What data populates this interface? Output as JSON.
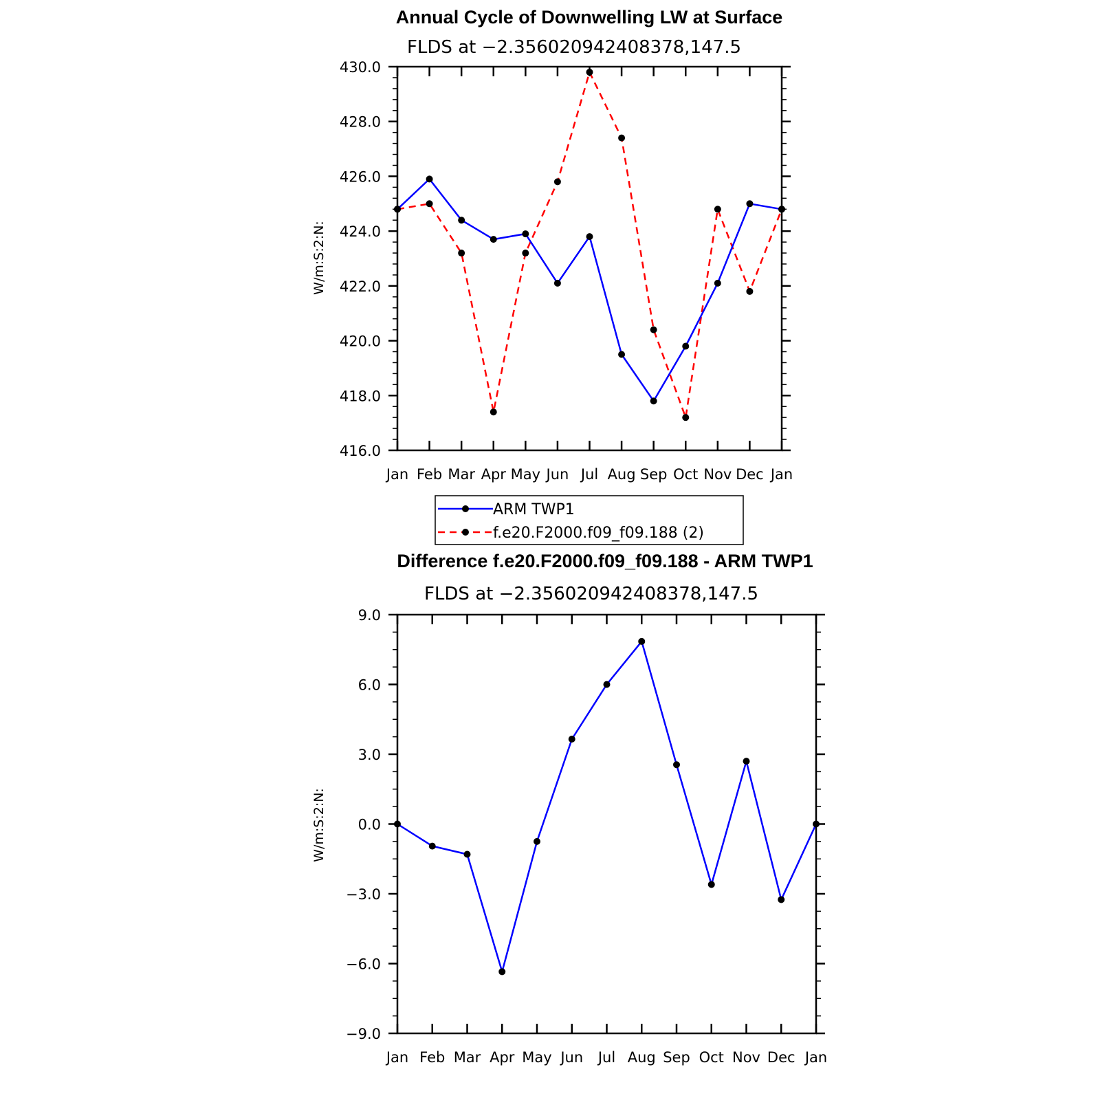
{
  "chart_data": [
    {
      "type": "line",
      "title": "Annual Cycle of Downwelling LW at Surface",
      "subtitle": "FLDS at −2.356020942408378,147.5",
      "ylabel": "W/m:S:2:N:",
      "ylim": [
        416.0,
        430.0
      ],
      "ytick_step": 2.0,
      "grid": false,
      "categories": [
        "Jan",
        "Feb",
        "Mar",
        "Apr",
        "May",
        "Jun",
        "Jul",
        "Aug",
        "Sep",
        "Oct",
        "Nov",
        "Dec",
        "Jan"
      ],
      "yticks": [
        "416.0",
        "418.0",
        "420.0",
        "422.0",
        "424.0",
        "426.0",
        "428.0",
        "430.0"
      ],
      "series": [
        {
          "name": "ARM TWP1",
          "color": "#0000ff",
          "dashed": false,
          "values": [
            424.8,
            425.9,
            424.4,
            423.7,
            423.9,
            422.1,
            423.8,
            419.5,
            417.8,
            419.8,
            422.1,
            425.0,
            424.8
          ]
        },
        {
          "name": "f.e20.F2000.f09_f09.188 (2)",
          "color": "#ff0000",
          "dashed": true,
          "values": [
            424.8,
            425.0,
            423.2,
            417.4,
            423.2,
            425.8,
            429.8,
            427.4,
            420.4,
            417.2,
            424.8,
            421.8,
            424.8
          ]
        }
      ],
      "legend_position": "below"
    },
    {
      "type": "line",
      "title": "Difference f.e20.F2000.f09_f09.188 - ARM TWP1",
      "subtitle": "FLDS at −2.356020942408378,147.5",
      "ylabel": "W/m:S:2:N:",
      "ylim": [
        -9.0,
        9.0
      ],
      "ytick_step": 3.0,
      "grid": false,
      "categories": [
        "Jan",
        "Feb",
        "Mar",
        "Apr",
        "May",
        "Jun",
        "Jul",
        "Aug",
        "Sep",
        "Oct",
        "Nov",
        "Dec",
        "Jan"
      ],
      "yticks": [
        "−9.0",
        "−6.0",
        "−3.0",
        "0.0",
        "3.0",
        "6.0",
        "9.0"
      ],
      "series": [
        {
          "color": "#0000ff",
          "dashed": false,
          "values": [
            0.0,
            -0.95,
            -1.3,
            -6.35,
            -0.75,
            3.65,
            6.0,
            7.85,
            2.55,
            -2.6,
            2.7,
            -3.25,
            0.0
          ]
        }
      ]
    }
  ]
}
